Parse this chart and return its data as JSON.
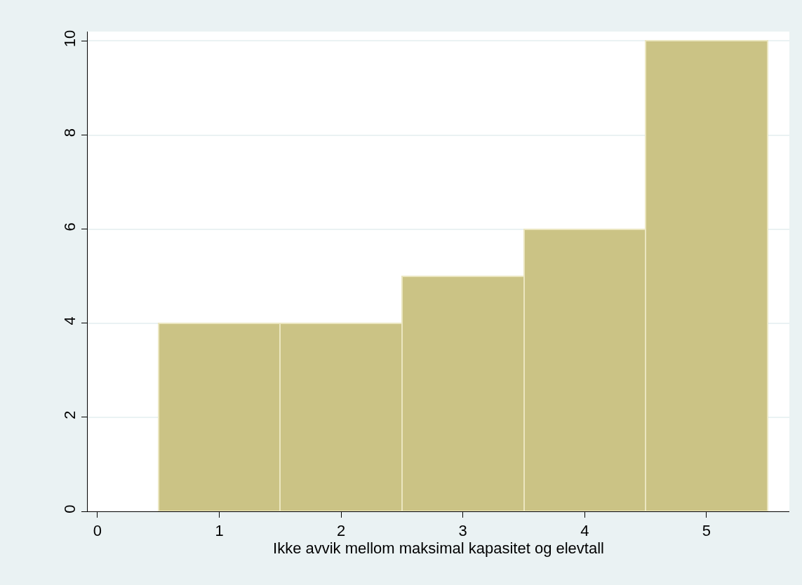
{
  "chart_data": {
    "type": "histogram",
    "xlabel": "Ikke avvik mellom maksimal kapasitet og elevtall",
    "bins": [
      0.5,
      1.5,
      2.5,
      3.5,
      4.5,
      5.5
    ],
    "values": [
      4,
      4,
      5,
      6,
      10
    ],
    "color": "#cbc385",
    "xlim": [
      -0.08,
      5.68
    ],
    "xticks": [
      0,
      1,
      2,
      3,
      4,
      5
    ],
    "ylim": [
      0,
      10.2
    ],
    "yticks": [
      0,
      2,
      4,
      6,
      8,
      10
    ],
    "grid": "y"
  }
}
